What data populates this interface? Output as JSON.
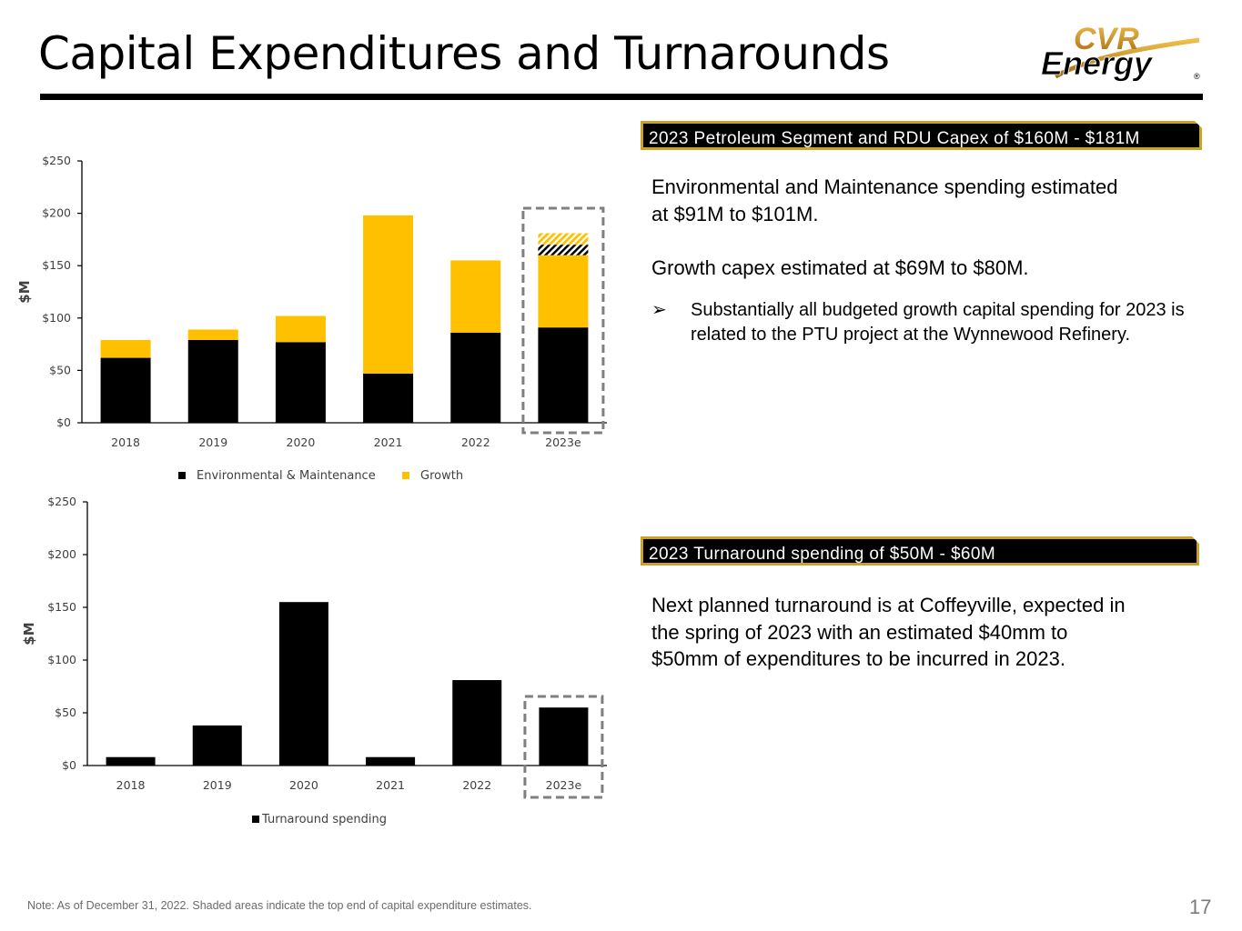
{
  "slide": {
    "title": "Capital Expenditures and Turnarounds",
    "logo_text_top": "CVR",
    "logo_text_bottom": "Energy",
    "logo_mark": "®",
    "note": "Note:  As of December 31, 2022. Shaded areas indicate the top end of capital expenditure estimates.",
    "page_number": "17"
  },
  "right": {
    "banner1": "2023 Petroleum Segment and RDU Capex of $160M - $181M",
    "para1_line1": "Environmental and Maintenance spending estimated",
    "para1_line2": "at $91M to $101M.",
    "para2": "Growth capex estimated at $69M to $80M.",
    "bullet_symbol": "➢",
    "bullet_text": "Substantially all budgeted growth capital spending for 2023 is related to the PTU project at the Wynnewood Refinery.",
    "banner2": "2023 Turnaround spending of $50M - $60M",
    "para3_line1": "Next planned turnaround is at Coffeyville, expected in",
    "para3_line2": "the spring of 2023 with an estimated $40mm to",
    "para3_line3": "$50mm of expenditures to be incurred in 2023."
  },
  "colors": {
    "env_maint": "#000000",
    "growth": "#ffc000",
    "banner_border": "#c9a227",
    "dashed_box": "#7f7f7f",
    "logo_gold": "#c8962a"
  },
  "chart_data": [
    {
      "type": "bar",
      "stacked": true,
      "ylabel": "$M",
      "ylim": [
        0,
        250
      ],
      "yticks": [
        0,
        50,
        100,
        150,
        200,
        250
      ],
      "ytick_labels": [
        "$0",
        "$50",
        "$100",
        "$150",
        "$200",
        "$250"
      ],
      "categories": [
        "2018",
        "2019",
        "2020",
        "2021",
        "2022",
        "2023e"
      ],
      "series": [
        {
          "name": "Environmental & Maintenance",
          "values": [
            62,
            79,
            77,
            47,
            86,
            91
          ]
        },
        {
          "name": "Growth",
          "values": [
            17,
            10,
            25,
            151,
            69,
            69
          ]
        }
      ],
      "estimate_shaded": {
        "category": "2023e",
        "env_maint_top_end": 10,
        "growth_top_end": 11
      },
      "highlight_category": "2023e",
      "legend": "bottom"
    },
    {
      "type": "bar",
      "ylabel": "$M",
      "ylim": [
        0,
        250
      ],
      "yticks": [
        0,
        50,
        100,
        150,
        200,
        250
      ],
      "ytick_labels": [
        "$0",
        "$50",
        "$100",
        "$150",
        "$200",
        "$250"
      ],
      "categories": [
        "2018",
        "2019",
        "2020",
        "2021",
        "2022",
        "2023e"
      ],
      "series": [
        {
          "name": "Turnaround spending",
          "values": [
            8,
            38,
            155,
            8,
            81,
            55
          ]
        }
      ],
      "highlight_category": "2023e",
      "legend": "bottom"
    }
  ]
}
